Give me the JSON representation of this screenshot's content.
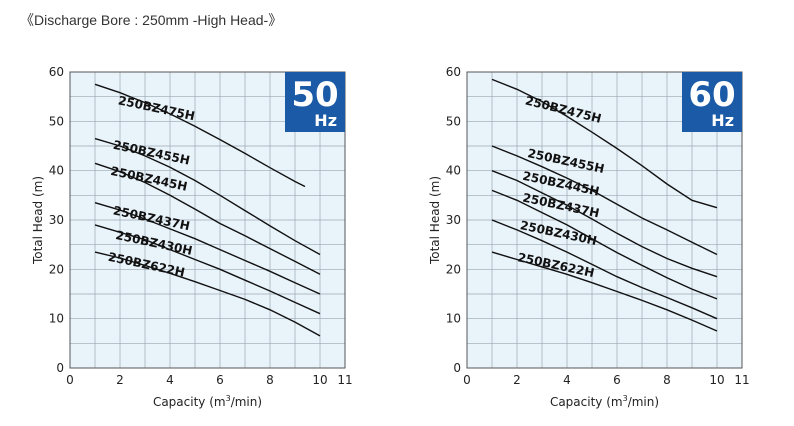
{
  "page_title": "《Discharge Bore : 250mm -High Head-》",
  "chart_data": [
    {
      "type": "line",
      "badge_value": "50",
      "badge_unit": "Hz",
      "badge_color": "#1a5aa6",
      "ylabel": "Total Head (m)",
      "xlabel_prefix": "Capacity (m",
      "xlabel_sup": "3",
      "xlabel_suffix": "/min)",
      "xlim": [
        0,
        11
      ],
      "ylim": [
        0,
        60
      ],
      "x_ticks": [
        0,
        2,
        4,
        6,
        8,
        10,
        11
      ],
      "y_ticks": [
        0,
        10,
        20,
        30,
        40,
        50,
        60
      ],
      "grid": true,
      "series": [
        {
          "name": "250BZ475H",
          "label_at": [
            1.9,
            53.5
          ],
          "label_angle": 12,
          "points": [
            [
              1,
              57.5
            ],
            [
              2,
              55.8
            ],
            [
              3,
              53.8
            ],
            [
              4,
              51.5
            ],
            [
              5,
              49
            ],
            [
              6,
              46.3
            ],
            [
              7,
              43.5
            ],
            [
              8,
              40.6
            ],
            [
              9,
              37.8
            ],
            [
              9.4,
              36.8
            ]
          ]
        },
        {
          "name": "250BZ455H",
          "label_at": [
            1.7,
            44.5
          ],
          "label_angle": 12,
          "points": [
            [
              1,
              46.5
            ],
            [
              2,
              45
            ],
            [
              3,
              43
            ],
            [
              4,
              40.7
            ],
            [
              5,
              38
            ],
            [
              6,
              35
            ],
            [
              7,
              31.9
            ],
            [
              8,
              28.8
            ],
            [
              9,
              25.8
            ],
            [
              10,
              23
            ]
          ]
        },
        {
          "name": "250BZ445H",
          "label_at": [
            1.6,
            39.2
          ],
          "label_angle": 12,
          "points": [
            [
              1,
              41.5
            ],
            [
              2,
              39.8
            ],
            [
              3,
              37.6
            ],
            [
              4,
              35
            ],
            [
              5,
              32.2
            ],
            [
              6,
              29.3
            ],
            [
              7,
              26.8
            ],
            [
              8,
              24.2
            ],
            [
              9,
              21.6
            ],
            [
              10,
              19
            ]
          ]
        },
        {
          "name": "250BZ437H",
          "label_at": [
            1.7,
            31.2
          ],
          "label_angle": 12,
          "points": [
            [
              1,
              33.5
            ],
            [
              2,
              32
            ],
            [
              3,
              30.2
            ],
            [
              4,
              28.2
            ],
            [
              5,
              26.2
            ],
            [
              6,
              24
            ],
            [
              7,
              21.8
            ],
            [
              8,
              19.6
            ],
            [
              9,
              17.3
            ],
            [
              10,
              15
            ]
          ]
        },
        {
          "name": "250BZ430H",
          "label_at": [
            1.8,
            26.2
          ],
          "label_angle": 12,
          "points": [
            [
              1,
              29
            ],
            [
              2,
              27.5
            ],
            [
              3,
              26
            ],
            [
              4,
              24
            ],
            [
              5,
              22
            ],
            [
              6,
              20
            ],
            [
              7,
              17.8
            ],
            [
              8,
              15.6
            ],
            [
              9,
              13.3
            ],
            [
              10,
              11
            ]
          ]
        },
        {
          "name": "250BZ622H",
          "label_at": [
            1.5,
            21.8
          ],
          "label_angle": 12,
          "points": [
            [
              1,
              23.5
            ],
            [
              2,
              22.3
            ],
            [
              3,
              20.8
            ],
            [
              4,
              19.2
            ],
            [
              5,
              17.5
            ],
            [
              6,
              15.7
            ],
            [
              7,
              13.9
            ],
            [
              8,
              11.8
            ],
            [
              9,
              9.3
            ],
            [
              10,
              6.5
            ]
          ]
        }
      ]
    },
    {
      "type": "line",
      "badge_value": "60",
      "badge_unit": "Hz",
      "badge_color": "#1a5aa6",
      "ylabel": "Total Head (m)",
      "xlabel_prefix": "Capacity (m",
      "xlabel_sup": "3",
      "xlabel_suffix": "/min)",
      "xlim": [
        0,
        11
      ],
      "ylim": [
        0,
        60
      ],
      "x_ticks": [
        0,
        2,
        4,
        6,
        8,
        10,
        11
      ],
      "y_ticks": [
        0,
        10,
        20,
        30,
        40,
        50,
        60
      ],
      "grid": true,
      "series": [
        {
          "name": "250BZ475H",
          "label_at": [
            2.3,
            53.5
          ],
          "label_angle": 14,
          "points": [
            [
              1,
              58.5
            ],
            [
              2,
              56.5
            ],
            [
              3,
              54
            ],
            [
              4,
              51
            ],
            [
              5,
              47.8
            ],
            [
              6,
              44.5
            ],
            [
              7,
              41
            ],
            [
              8,
              37.3
            ],
            [
              9,
              34
            ],
            [
              10,
              32.5
            ]
          ]
        },
        {
          "name": "250BZ455H",
          "label_at": [
            2.4,
            42.8
          ],
          "label_angle": 12,
          "points": [
            [
              1,
              45
            ],
            [
              2,
              43
            ],
            [
              3,
              40.8
            ],
            [
              4,
              38.5
            ],
            [
              5,
              36
            ],
            [
              6,
              33.2
            ],
            [
              7,
              30.4
            ],
            [
              8,
              28
            ],
            [
              9,
              25.5
            ],
            [
              10,
              23
            ]
          ]
        },
        {
          "name": "250BZ445H",
          "label_at": [
            2.2,
            38.2
          ],
          "label_angle": 12,
          "points": [
            [
              1,
              40
            ],
            [
              2,
              38
            ],
            [
              3,
              35.5
            ],
            [
              4,
              33
            ],
            [
              5,
              30.2
            ],
            [
              6,
              27.3
            ],
            [
              7,
              24.6
            ],
            [
              8,
              22.2
            ],
            [
              9,
              20.2
            ],
            [
              10,
              18.5
            ]
          ]
        },
        {
          "name": "250BZ437H",
          "label_at": [
            2.2,
            33.8
          ],
          "label_angle": 12,
          "points": [
            [
              1,
              36
            ],
            [
              2,
              34
            ],
            [
              3,
              31.5
            ],
            [
              4,
              29
            ],
            [
              5,
              26.2
            ],
            [
              6,
              23.4
            ],
            [
              7,
              20.8
            ],
            [
              8,
              18.3
            ],
            [
              9,
              16
            ],
            [
              10,
              14
            ]
          ]
        },
        {
          "name": "250BZ430H",
          "label_at": [
            2.1,
            28.2
          ],
          "label_angle": 12,
          "points": [
            [
              1,
              30
            ],
            [
              2,
              28
            ],
            [
              3,
              25.8
            ],
            [
              4,
              23.5
            ],
            [
              5,
              21
            ],
            [
              6,
              18.5
            ],
            [
              7,
              16.3
            ],
            [
              8,
              14.3
            ],
            [
              9,
              12.2
            ],
            [
              10,
              10
            ]
          ]
        },
        {
          "name": "250BZ622H",
          "label_at": [
            2,
            21.7
          ],
          "label_angle": 12,
          "points": [
            [
              1,
              23.5
            ],
            [
              2,
              22
            ],
            [
              3,
              20.5
            ],
            [
              4,
              19
            ],
            [
              5,
              17.3
            ],
            [
              6,
              15.5
            ],
            [
              7,
              13.7
            ],
            [
              8,
              11.8
            ],
            [
              9,
              9.7
            ],
            [
              10,
              7.5
            ]
          ]
        }
      ]
    }
  ]
}
